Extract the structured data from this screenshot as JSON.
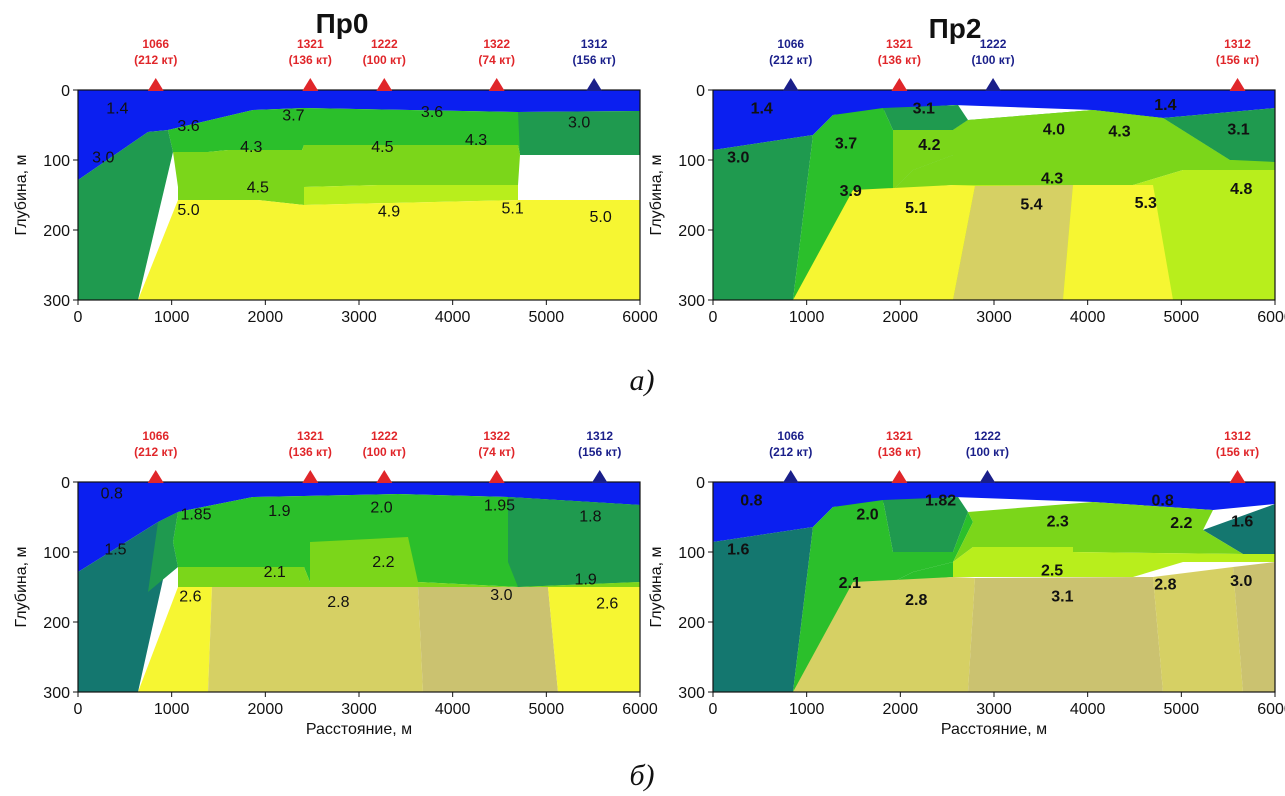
{
  "figure": {
    "caption_a": "а)",
    "caption_b": "б)",
    "title_left": "Пр0",
    "title_right": "Пр2"
  },
  "colors": {
    "blue": "#0b1ff0",
    "darkgreen": "#1f9a4f",
    "teal": "#14776f",
    "green": "#2bbf2b",
    "lightgreen": "#7bd61a",
    "lime": "#b8ee1c",
    "yellow": "#f6f632",
    "khaki": "#d6d064",
    "olive": "#cbc270",
    "marker_red": "#e0262a",
    "marker_blue": "#1a1f8a"
  },
  "chart_data": [
    {
      "id": "a-left",
      "type": "heatmap",
      "title": "Пр0",
      "xlabel": "",
      "ylabel": "Глубина, м",
      "xlim": [
        0,
        6000
      ],
      "ylim": [
        0,
        300
      ],
      "xticks": [
        "0",
        "1000",
        "2000",
        "3000",
        "4000",
        "5000",
        "6000"
      ],
      "yticks": [
        "0",
        "100",
        "200",
        "300"
      ],
      "markers": [
        {
          "x": 830,
          "id": "1066",
          "note": "(212 кт)",
          "color": "red"
        },
        {
          "x": 2480,
          "id": "1321",
          "note": "(136 кт)",
          "color": "red"
        },
        {
          "x": 3270,
          "id": "1222",
          "note": "(100 кт)",
          "color": "red"
        },
        {
          "x": 4470,
          "id": "1322",
          "note": "(74 кт)",
          "color": "red"
        },
        {
          "x": 5510,
          "id": "1312",
          "note": "(156 кт)",
          "color": "blue"
        }
      ],
      "values": [
        {
          "text": "1.4",
          "x": 420,
          "y": 25
        },
        {
          "text": "3.0",
          "x": 270,
          "y": 95
        },
        {
          "text": "3.6",
          "x": 1180,
          "y": 50
        },
        {
          "text": "3.7",
          "x": 2300,
          "y": 35
        },
        {
          "text": "3.6",
          "x": 3780,
          "y": 30
        },
        {
          "text": "3.0",
          "x": 5350,
          "y": 45
        },
        {
          "text": "4.3",
          "x": 1850,
          "y": 80
        },
        {
          "text": "4.5",
          "x": 3250,
          "y": 80
        },
        {
          "text": "4.3",
          "x": 4250,
          "y": 70
        },
        {
          "text": "4.5",
          "x": 1920,
          "y": 138
        },
        {
          "text": "5.0",
          "x": 1180,
          "y": 170
        },
        {
          "text": "4.9",
          "x": 3320,
          "y": 172
        },
        {
          "text": "5.1",
          "x": 4640,
          "y": 168
        },
        {
          "text": "5.0",
          "x": 5580,
          "y": 180
        }
      ]
    },
    {
      "id": "a-right",
      "type": "heatmap",
      "title": "Пр2",
      "xlabel": "",
      "ylabel": "Глубина, м",
      "xlim": [
        0,
        6000
      ],
      "ylim": [
        0,
        300
      ],
      "xticks": [
        "0",
        "1000",
        "2000",
        "3000",
        "4000",
        "5000",
        "6000"
      ],
      "yticks": [
        "0",
        "100",
        "200",
        "300"
      ],
      "markers": [
        {
          "x": 830,
          "id": "1066",
          "note": "(212 кт)",
          "color": "blue"
        },
        {
          "x": 1990,
          "id": "1321",
          "note": "(136 кт)",
          "color": "red"
        },
        {
          "x": 2990,
          "id": "1222",
          "note": "(100 кт)",
          "color": "blue"
        },
        {
          "x": 5600,
          "id": "1312",
          "note": "(156 кт)",
          "color": "red"
        }
      ],
      "values": [
        {
          "text": "1.4",
          "x": 520,
          "y": 25
        },
        {
          "text": "1.4",
          "x": 4830,
          "y": 20
        },
        {
          "text": "3.1",
          "x": 2250,
          "y": 25
        },
        {
          "text": "3.0",
          "x": 270,
          "y": 95
        },
        {
          "text": "3.7",
          "x": 1420,
          "y": 75
        },
        {
          "text": "4.2",
          "x": 2310,
          "y": 77
        },
        {
          "text": "4.0",
          "x": 3640,
          "y": 55
        },
        {
          "text": "4.3",
          "x": 4340,
          "y": 58
        },
        {
          "text": "3.1",
          "x": 5610,
          "y": 55
        },
        {
          "text": "3.9",
          "x": 1470,
          "y": 143
        },
        {
          "text": "4.3",
          "x": 3620,
          "y": 125
        },
        {
          "text": "4.8",
          "x": 5640,
          "y": 140
        },
        {
          "text": "5.1",
          "x": 2170,
          "y": 167
        },
        {
          "text": "5.4",
          "x": 3400,
          "y": 162
        },
        {
          "text": "5.3",
          "x": 4620,
          "y": 160
        }
      ]
    },
    {
      "id": "b-left",
      "type": "heatmap",
      "title": "",
      "xlabel": "Расстояние, м",
      "ylabel": "Глубина, м",
      "xlim": [
        0,
        6000
      ],
      "ylim": [
        0,
        300
      ],
      "xticks": [
        "0",
        "1000",
        "2000",
        "3000",
        "4000",
        "5000",
        "6000"
      ],
      "yticks": [
        "0",
        "100",
        "200",
        "300"
      ],
      "markers": [
        {
          "x": 830,
          "id": "1066",
          "note": "(212 кт)",
          "color": "red"
        },
        {
          "x": 2480,
          "id": "1321",
          "note": "(136 кт)",
          "color": "red"
        },
        {
          "x": 3270,
          "id": "1222",
          "note": "(100 кт)",
          "color": "red"
        },
        {
          "x": 4470,
          "id": "1322",
          "note": "(74 кт)",
          "color": "red"
        },
        {
          "x": 5570,
          "id": "1312",
          "note": "(156 кт)",
          "color": "blue"
        }
      ],
      "values": [
        {
          "text": "0.8",
          "x": 360,
          "y": 15
        },
        {
          "text": "1.5",
          "x": 400,
          "y": 95
        },
        {
          "text": "1.85",
          "x": 1260,
          "y": 45
        },
        {
          "text": "1.9",
          "x": 2150,
          "y": 40
        },
        {
          "text": "2.0",
          "x": 3240,
          "y": 35
        },
        {
          "text": "1.95",
          "x": 4500,
          "y": 32
        },
        {
          "text": "1.8",
          "x": 5470,
          "y": 48
        },
        {
          "text": "2.1",
          "x": 2100,
          "y": 127
        },
        {
          "text": "2.2",
          "x": 3260,
          "y": 113
        },
        {
          "text": "1.9",
          "x": 5420,
          "y": 138
        },
        {
          "text": "2.6",
          "x": 1200,
          "y": 162
        },
        {
          "text": "2.8",
          "x": 2780,
          "y": 170
        },
        {
          "text": "3.0",
          "x": 4520,
          "y": 160
        },
        {
          "text": "2.6",
          "x": 5650,
          "y": 172
        }
      ]
    },
    {
      "id": "b-right",
      "type": "heatmap",
      "title": "",
      "xlabel": "Расстояние, м",
      "ylabel": "Глубина, м",
      "xlim": [
        0,
        6000
      ],
      "ylim": [
        0,
        300
      ],
      "xticks": [
        "0",
        "1000",
        "2000",
        "3000",
        "4000",
        "5000",
        "6000"
      ],
      "yticks": [
        "0",
        "100",
        "200",
        "300"
      ],
      "markers": [
        {
          "x": 830,
          "id": "1066",
          "note": "(212 кт)",
          "color": "blue"
        },
        {
          "x": 1990,
          "id": "1321",
          "note": "(136 кт)",
          "color": "red"
        },
        {
          "x": 2930,
          "id": "1222",
          "note": "(100 кт)",
          "color": "blue"
        },
        {
          "x": 5600,
          "id": "1312",
          "note": "(156 кт)",
          "color": "red"
        }
      ],
      "values": [
        {
          "text": "0.8",
          "x": 410,
          "y": 25
        },
        {
          "text": "0.8",
          "x": 4800,
          "y": 25
        },
        {
          "text": "2.0",
          "x": 1650,
          "y": 45
        },
        {
          "text": "1.82",
          "x": 2430,
          "y": 25
        },
        {
          "text": "2.3",
          "x": 3680,
          "y": 55
        },
        {
          "text": "2.2",
          "x": 5000,
          "y": 57
        },
        {
          "text": "1.6",
          "x": 5650,
          "y": 55
        },
        {
          "text": "1.6",
          "x": 270,
          "y": 95
        },
        {
          "text": "2.1",
          "x": 1460,
          "y": 143
        },
        {
          "text": "2.5",
          "x": 3620,
          "y": 125
        },
        {
          "text": "2.8",
          "x": 4830,
          "y": 145
        },
        {
          "text": "3.0",
          "x": 5640,
          "y": 140
        },
        {
          "text": "2.8",
          "x": 2170,
          "y": 167
        },
        {
          "text": "3.1",
          "x": 3730,
          "y": 162
        }
      ]
    }
  ]
}
